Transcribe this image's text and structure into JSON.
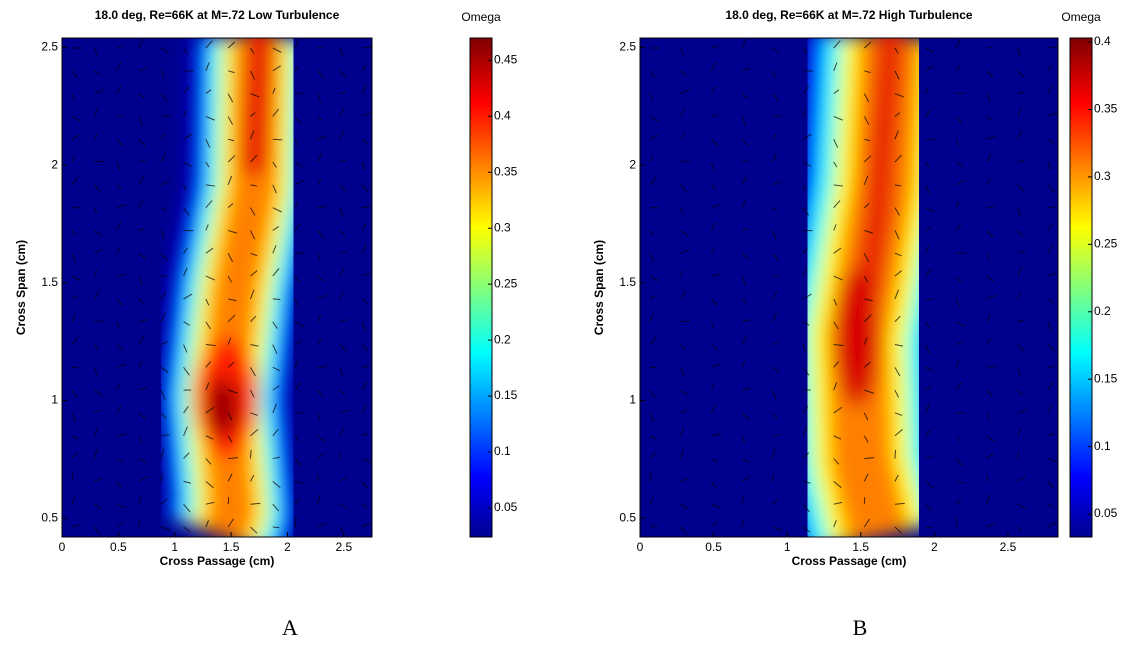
{
  "charts": [
    {
      "type": "contour",
      "title": "18.0 deg, Re=66K at M=.72 Low Turbulence",
      "colorbar_label": "Omega",
      "xlabel": "Cross Passage (cm)",
      "ylabel": "Cross Span (cm)",
      "panel_label": "A",
      "xlim": [
        0,
        2.75
      ],
      "xticks": [
        0,
        0.5,
        1,
        1.5,
        2,
        2.5
      ],
      "ylim": [
        0.42,
        2.54
      ],
      "yticks": [
        0.5,
        1,
        1.5,
        2,
        2.5
      ],
      "clim": [
        0.024,
        0.47
      ],
      "cticks": [
        0.05,
        0.1,
        0.15,
        0.2,
        0.25,
        0.3,
        0.35,
        0.4,
        0.45
      ]
    },
    {
      "type": "contour",
      "title": "18.0 deg, Re=66K at M=.72 High Turbulence",
      "colorbar_label": "Omega",
      "xlabel": "Cross Passage (cm)",
      "ylabel": "Cross Span (cm)",
      "panel_label": "B",
      "xlim": [
        0,
        2.84
      ],
      "xticks": [
        0,
        0.5,
        1,
        1.5,
        2,
        2.5
      ],
      "ylim": [
        0.42,
        2.54
      ],
      "yticks": [
        0.5,
        1,
        1.5,
        2,
        2.5
      ],
      "clim": [
        0.033,
        0.403
      ],
      "cticks": [
        0.05,
        0.1,
        0.15,
        0.2,
        0.25,
        0.3,
        0.35,
        0.4
      ]
    }
  ]
}
